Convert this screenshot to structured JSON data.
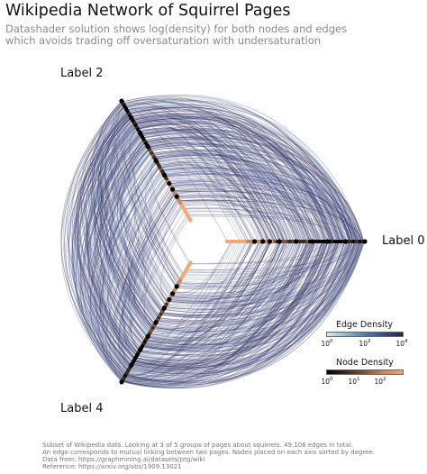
{
  "title": "Wikipedia Network of Squirrel Pages",
  "subtitle_lines": [
    "Datashader solution shows log(density) for both nodes and edges",
    "which avoids trading off oversaturation with undersaturation"
  ],
  "axes": [
    {
      "label": "Label 0"
    },
    {
      "label": "Label 2"
    },
    {
      "label": "Label 4"
    }
  ],
  "legends": {
    "edge_density": {
      "title": "Edge Density",
      "ticks": [
        {
          "base": "10",
          "exp": "0"
        },
        {
          "base": "10",
          "exp": "2"
        },
        {
          "base": "10",
          "exp": "4"
        }
      ],
      "colors": [
        "#d6eef0",
        "#8ab9cf",
        "#4f7fb0",
        "#3c4a8e",
        "#2a2250"
      ]
    },
    "node_density": {
      "title": "Node Density",
      "ticks": [
        {
          "base": "10",
          "exp": "0"
        },
        {
          "base": "10",
          "exp": "1"
        },
        {
          "base": "10",
          "exp": "2"
        }
      ],
      "colors": [
        "#000000",
        "#3a2a20",
        "#7a543c",
        "#c48862",
        "#f2a877"
      ]
    }
  },
  "footer_lines": [
    "Subset of Wikipedia data. Looking at 3 of 5 groups of pages about squirrels. 49,106 edges in total.",
    "An edge corresponds to mutual linking between two pages. Nodes placed on each axis sorted by degree.",
    "Data from: https://graphmining.ai/datasets/ptg/wiki",
    "Reference: https://arxiv.org/abs/1909.13021"
  ]
}
